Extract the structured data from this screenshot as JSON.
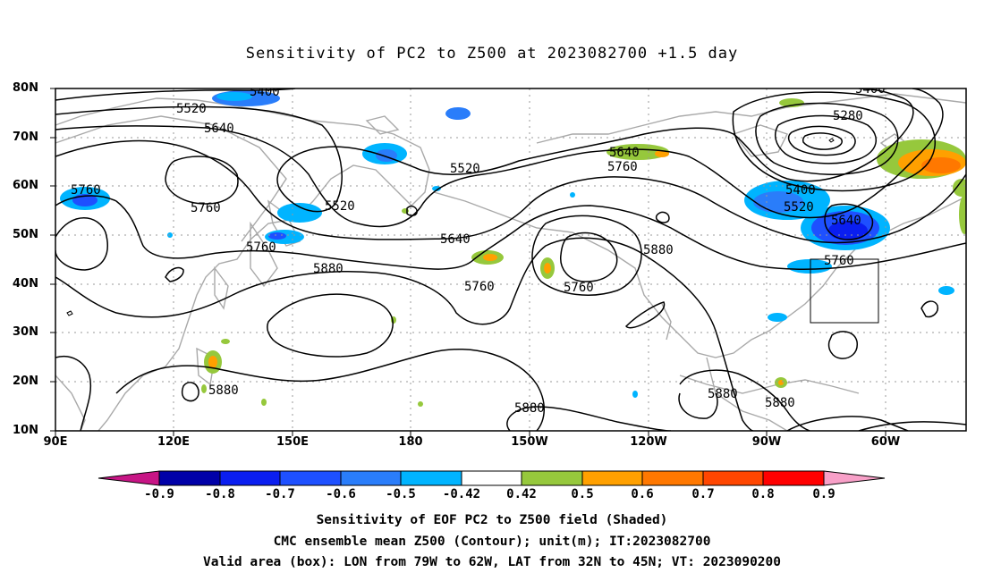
{
  "title": "Sensitivity of PC2 to Z500 at 2023082700 +1.5 day",
  "lat_labels": [
    "80N",
    "70N",
    "60N",
    "50N",
    "40N",
    "30N",
    "20N",
    "10N"
  ],
  "lon_labels": [
    "90E",
    "120E",
    "150E",
    "180",
    "150W",
    "120W",
    "90W",
    "60W"
  ],
  "contour_labels": [
    "5400",
    "5520",
    "5640",
    "5760",
    "5280",
    "5880"
  ],
  "colorbar": {
    "ticks": [
      "-0.9",
      "-0.8",
      "-0.7",
      "-0.6",
      "-0.5",
      "-0.42",
      "0.42",
      "0.5",
      "0.6",
      "0.7",
      "0.8",
      "0.9"
    ],
    "colors": [
      "#c71585",
      "#0000a8",
      "#0a1ef0",
      "#1e50ff",
      "#2a7dfa",
      "#00b4ff",
      "#ffffff",
      "#96c83c",
      "#ffa000",
      "#ff7800",
      "#ff4600",
      "#ff0000",
      "#f8a0c8"
    ]
  },
  "box": {
    "lon_from": "79W",
    "lon_to": "62W",
    "lat_from": "32N",
    "lat_to": "45N"
  },
  "captions": {
    "line1": "Sensitivity of EOF PC2 to Z500 field (Shaded)",
    "line2": "CMC ensemble mean Z500 (Contour); unit(m); IT:2023082700",
    "line3": "Valid area (box): LON from 79W to 62W, LAT from 32N to 45N; VT: 2023090200"
  }
}
